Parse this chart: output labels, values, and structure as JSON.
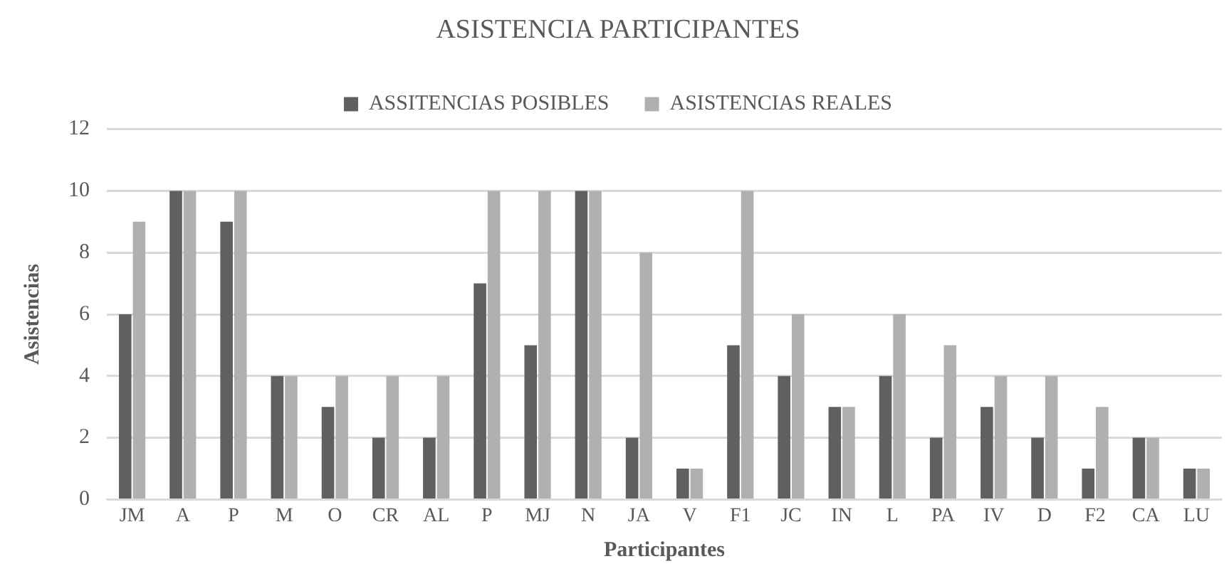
{
  "chart_data": {
    "type": "bar",
    "title": "ASISTENCIA PARTICIPANTES",
    "xlabel": "Participantes",
    "ylabel": "Asistencias",
    "categories": [
      "JM",
      "A",
      "P",
      "M",
      "O",
      "CR",
      "AL",
      "P",
      "MJ",
      "N",
      "JA",
      "V",
      "F1",
      "JC",
      "IN",
      "L",
      "PA",
      "IV",
      "D",
      "F2",
      "CA",
      "LU"
    ],
    "series": [
      {
        "name": "ASSITENCIAS POSIBLES",
        "color": "#606060",
        "values": [
          6,
          10,
          9,
          4,
          3,
          2,
          2,
          7,
          5,
          10,
          2,
          1,
          5,
          4,
          3,
          4,
          2,
          3,
          2,
          1,
          2,
          1
        ]
      },
      {
        "name": "ASISTENCIAS REALES",
        "color": "#b0b0b0",
        "values": [
          9,
          10,
          10,
          4,
          4,
          4,
          4,
          10,
          10,
          10,
          8,
          1,
          10,
          6,
          3,
          6,
          5,
          4,
          4,
          3,
          2,
          1
        ]
      }
    ],
    "ylim": [
      0,
      12
    ],
    "yticks": [
      0,
      2,
      4,
      6,
      8,
      10,
      12
    ],
    "grid": "y",
    "legend": "top"
  }
}
